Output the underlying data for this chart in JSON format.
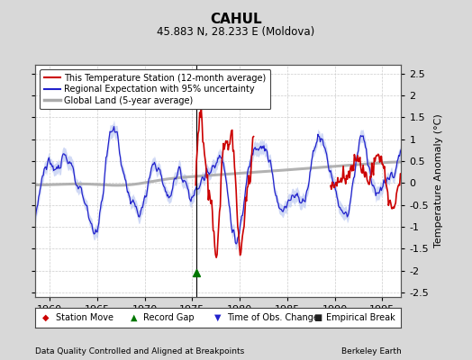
{
  "title": "CAHUL",
  "subtitle": "45.883 N, 28.233 E (Moldova)",
  "xlabel_left": "Data Quality Controlled and Aligned at Breakpoints",
  "xlabel_right": "Berkeley Earth",
  "ylabel_right": "Temperature Anomaly (°C)",
  "xlim": [
    1958.5,
    1997.0
  ],
  "ylim": [
    -2.6,
    2.7
  ],
  "yticks": [
    -2.5,
    -2.0,
    -1.5,
    -1.0,
    -0.5,
    0.0,
    0.5,
    1.0,
    1.5,
    2.0,
    2.5
  ],
  "xticks": [
    1960,
    1965,
    1970,
    1975,
    1980,
    1985,
    1990,
    1995
  ],
  "fig_bg_color": "#d8d8d8",
  "plot_bg_color": "#ffffff",
  "grid_color": "#cccccc",
  "blue_line_color": "#2222cc",
  "blue_fill_color": "#aabbee",
  "red_line_color": "#cc0000",
  "gray_line_color": "#aaaaaa",
  "breakpoint_line_color": "#000000",
  "breakpoint_x": 1975.4,
  "record_gap_x": 1975.4,
  "record_gap_y": -2.05,
  "red_start_year": 1975.3,
  "red_end_year": 1981.5,
  "red_start2_year": 1989.5,
  "red_end2_year": 1997.0
}
